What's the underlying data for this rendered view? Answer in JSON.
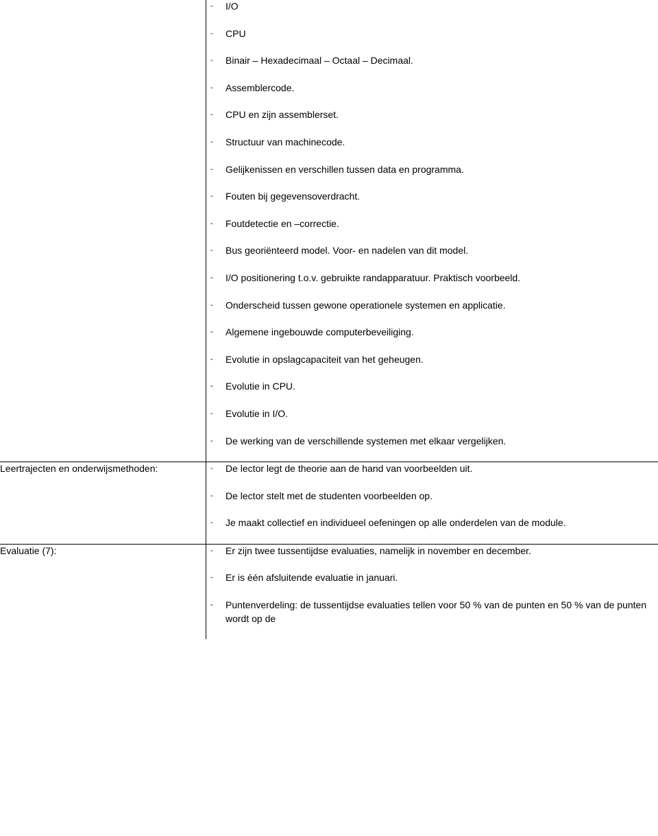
{
  "section1": {
    "items": [
      "I/O",
      "CPU",
      "Binair – Hexadecimaal – Octaal – Decimaal.",
      "Assemblercode.",
      "CPU en zijn assemblerset.",
      "Structuur van machinecode.",
      "Gelijkenissen en verschillen tussen data en programma.",
      "Fouten bij gegevensoverdracht.",
      "Foutdetectie en –correctie.",
      "Bus georiënteerd model. Voor- en nadelen van dit model.",
      "I/O positionering t.o.v. gebruikte randapparatuur. Praktisch voorbeeld.",
      "Onderscheid tussen gewone operationele systemen en applicatie.",
      "Algemene ingebouwde computerbeveiliging.",
      "Evolutie in opslagcapaciteit van het geheugen.",
      "Evolutie in CPU.",
      "Evolutie in I/O.",
      "De werking van de verschillende systemen met elkaar vergelijken."
    ]
  },
  "section2": {
    "label": "Leertrajecten en onderwijsmethoden:",
    "items": [
      "De lector legt de theorie aan de hand van voorbeelden uit.",
      "De lector stelt met de studenten voorbeelden op.",
      "Je maakt collectief en individueel oefeningen op alle onderdelen van de module."
    ]
  },
  "section3": {
    "label": "Evaluatie (7):",
    "items": [
      "Er zijn twee tussentijdse evaluaties, namelijk in november en december.",
      "Er is één afsluitende evaluatie in januari.",
      "Puntenverdeling: de tussentijdse evaluaties tellen voor 50 % van de punten en 50 % van de punten wordt op de"
    ]
  }
}
